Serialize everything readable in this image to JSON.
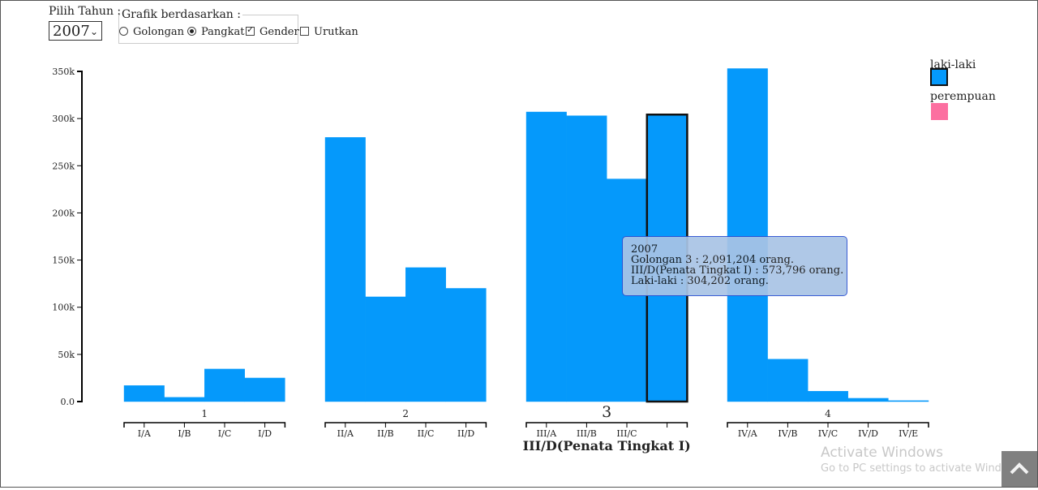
{
  "controls": {
    "year_label": "Pilih Tahun :",
    "year_value": "2007",
    "group_label": "Grafik berdasarkan :",
    "options": [
      {
        "label": "Golongan",
        "type": "radio",
        "checked": false
      },
      {
        "label": "Pangkat",
        "type": "radio",
        "checked": true
      },
      {
        "label": "Gender",
        "type": "checkbox",
        "checked": true
      },
      {
        "label": "Urutkan",
        "type": "checkbox",
        "checked": false
      }
    ]
  },
  "chart_data": {
    "type": "bar",
    "groups": [
      {
        "name": "1",
        "categories": [
          "I/A",
          "I/B",
          "I/C",
          "I/D"
        ],
        "values": [
          17000,
          4500,
          34500,
          25000
        ]
      },
      {
        "name": "2",
        "categories": [
          "II/A",
          "II/B",
          "II/C",
          "II/D"
        ],
        "values": [
          280000,
          111000,
          142000,
          120000
        ]
      },
      {
        "name": "3",
        "categories": [
          "III/A",
          "III/B",
          "III/C",
          "III/D"
        ],
        "values": [
          307000,
          303000,
          236000,
          304202
        ]
      },
      {
        "name": "4",
        "categories": [
          "IV/A",
          "IV/B",
          "IV/C",
          "IV/D",
          "IV/E"
        ],
        "values": [
          353000,
          45000,
          11000,
          3500,
          1000
        ]
      }
    ],
    "yticks": [
      "0.0",
      "50k",
      "100k",
      "150k",
      "200k",
      "250k",
      "300k",
      "350k"
    ],
    "ylim": [
      0,
      350000
    ],
    "highlight": {
      "group": 2,
      "index": 3
    },
    "hover_label": "III/D(Penata Tingkat I)",
    "legend": [
      {
        "name": "laki-laki",
        "color": "#0599fb"
      },
      {
        "name": "perempuan",
        "color": "#fc6fa0"
      }
    ],
    "tooltip": [
      "2007",
      "Golongan 3 : 2,091,204 orang.",
      "III/D(Penata Tingkat I) : 573,796 orang.",
      "Laki-laki : 304,202 orang."
    ]
  },
  "watermark": {
    "title": "Activate Windows",
    "subtitle": "Go to PC settings to activate Windows."
  },
  "scroll_top_icon": "chevron-up-icon"
}
